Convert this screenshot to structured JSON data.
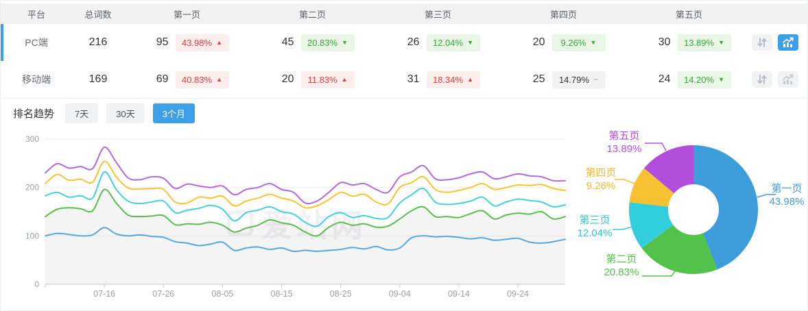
{
  "table": {
    "columns": [
      "平台",
      "总词数",
      "第一页",
      "第二页",
      "第三页",
      "第四页",
      "第五页"
    ],
    "rows": [
      {
        "platform": "PC端",
        "total": "216",
        "selected": true,
        "pages": [
          {
            "count": "95",
            "pct": "43.98%",
            "arrow": "▲",
            "tone": "red"
          },
          {
            "count": "45",
            "pct": "20.83%",
            "arrow": "▼",
            "tone": "green"
          },
          {
            "count": "26",
            "pct": "12.04%",
            "arrow": "▼",
            "tone": "green"
          },
          {
            "count": "20",
            "pct": "9.26%",
            "arrow": "▼",
            "tone": "green"
          },
          {
            "count": "30",
            "pct": "13.89%",
            "arrow": "▼",
            "tone": "green"
          }
        ]
      },
      {
        "platform": "移动端",
        "total": "169",
        "selected": false,
        "pages": [
          {
            "count": "69",
            "pct": "40.83%",
            "arrow": "▲",
            "tone": "red"
          },
          {
            "count": "20",
            "pct": "11.83%",
            "arrow": "▲",
            "tone": "red"
          },
          {
            "count": "31",
            "pct": "18.34%",
            "arrow": "▲",
            "tone": "red"
          },
          {
            "count": "25",
            "pct": "14.79%",
            "arrow": "−",
            "tone": "gray"
          },
          {
            "count": "24",
            "pct": "14.20%",
            "arrow": "▼",
            "tone": "green"
          }
        ]
      }
    ]
  },
  "trend": {
    "label": "排名趋势",
    "ranges": [
      "7天",
      "30天",
      "3个月"
    ],
    "active_range": "3个月"
  },
  "watermark": "爱站网",
  "chart_data": [
    {
      "type": "line",
      "title": "排名趋势 3个月",
      "x_tick_labels": [
        "07-16",
        "07-26",
        "08-05",
        "08-15",
        "08-25",
        "09-04",
        "09-14",
        "09-24"
      ],
      "x_tick_days": [
        10,
        20,
        30,
        40,
        50,
        60,
        70,
        80
      ],
      "x_day_span": [
        0,
        88
      ],
      "day_step": 2,
      "ylim": [
        0,
        300
      ],
      "yticks": [
        0,
        100,
        200,
        300
      ],
      "grid": true,
      "series": [
        {
          "name": "第五页",
          "color": "#b168e0",
          "area": false,
          "values": [
            230,
            249,
            240,
            243,
            239,
            283,
            252,
            220,
            216,
            222,
            219,
            198,
            207,
            203,
            200,
            203,
            185,
            196,
            200,
            208,
            196,
            190,
            168,
            172,
            190,
            210,
            205,
            208,
            196,
            190,
            222,
            232,
            245,
            218,
            216,
            220,
            228,
            232,
            218,
            222,
            228,
            224,
            222,
            214,
            214
          ]
        },
        {
          "name": "第四页",
          "color": "#fbc32f",
          "area": false,
          "values": [
            208,
            227,
            215,
            217,
            211,
            254,
            222,
            199,
            197,
            198,
            196,
            170,
            168,
            180,
            178,
            182,
            162,
            172,
            178,
            186,
            178,
            172,
            158,
            162,
            175,
            190,
            182,
            186,
            170,
            166,
            200,
            210,
            222,
            196,
            190,
            194,
            200,
            208,
            196,
            200,
            205,
            204,
            206,
            198,
            194
          ]
        },
        {
          "name": "第三页",
          "color": "#41d2de",
          "area": false,
          "values": [
            183,
            190,
            180,
            183,
            178,
            232,
            196,
            172,
            167,
            170,
            172,
            148,
            153,
            157,
            163,
            155,
            131,
            148,
            153,
            160,
            150,
            145,
            128,
            120,
            140,
            148,
            138,
            142,
            136,
            138,
            168,
            185,
            198,
            170,
            165,
            167,
            172,
            180,
            162,
            170,
            176,
            173,
            170,
            160,
            164
          ]
        },
        {
          "name": "第二页",
          "color": "#58bf4b",
          "area": true,
          "values": [
            140,
            155,
            158,
            156,
            152,
            196,
            168,
            143,
            140,
            141,
            142,
            123,
            125,
            124,
            128,
            122,
            108,
            116,
            122,
            133,
            127,
            122,
            108,
            100,
            118,
            128,
            122,
            125,
            118,
            120,
            135,
            152,
            160,
            140,
            140,
            138,
            146,
            152,
            135,
            143,
            147,
            145,
            150,
            135,
            140
          ]
        },
        {
          "name": "第一页",
          "color": "#54a7e3",
          "area": false,
          "values": [
            100,
            105,
            103,
            100,
            102,
            117,
            104,
            100,
            102,
            99,
            97,
            88,
            85,
            80,
            83,
            87,
            70,
            75,
            77,
            72,
            75,
            68,
            70,
            68,
            70,
            72,
            76,
            73,
            78,
            71,
            75,
            96,
            100,
            98,
            99,
            97,
            94,
            96,
            91,
            93,
            95,
            87,
            85,
            88,
            93
          ]
        }
      ]
    },
    {
      "type": "pie",
      "inner_radius_ratio": 0.39,
      "slices": [
        {
          "label": "第一页",
          "pct": "43.98%",
          "value": 43.98,
          "color": "#3d9ddb"
        },
        {
          "label": "第二页",
          "pct": "20.83%",
          "value": 20.83,
          "color": "#53c24a"
        },
        {
          "label": "第三页",
          "pct": "12.04%",
          "value": 12.04,
          "color": "#32cedd"
        },
        {
          "label": "第四页",
          "pct": "9.26%",
          "value": 9.26,
          "color": "#f8c133"
        },
        {
          "label": "第五页",
          "pct": "13.89%",
          "value": 13.89,
          "color": "#b34ddb"
        }
      ]
    }
  ]
}
